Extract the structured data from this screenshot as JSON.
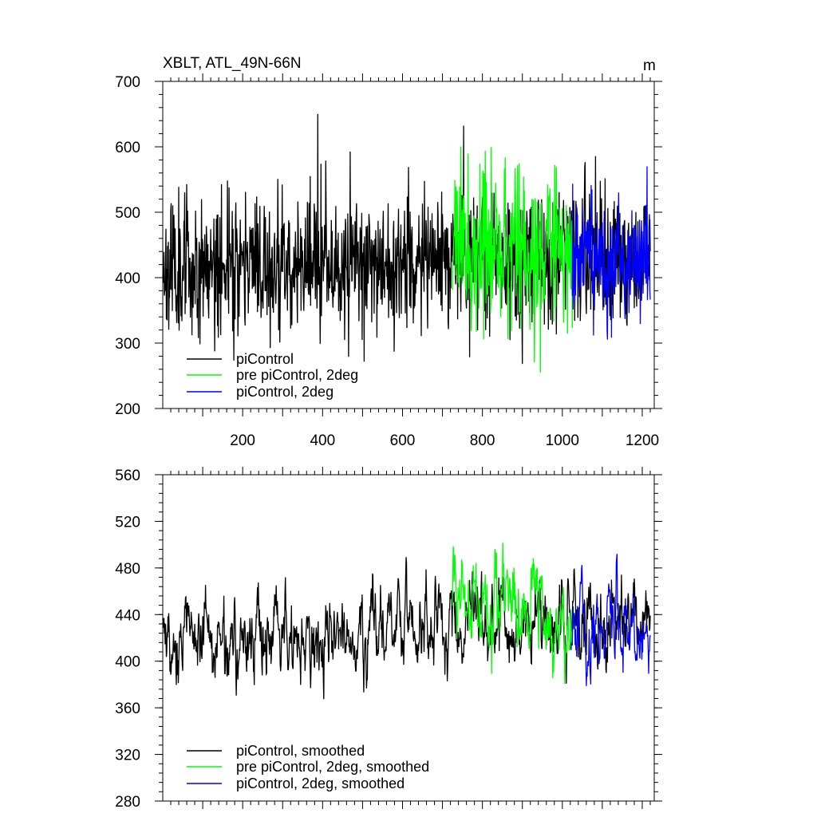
{
  "chart_data": [
    {
      "type": "line",
      "title": "XBLT, ATL_49N-66N",
      "units": "m",
      "xlim": [
        0,
        1230
      ],
      "ylim": [
        200,
        700
      ],
      "xticks": [
        200,
        400,
        600,
        800,
        1000,
        1200
      ],
      "yticks": [
        200,
        300,
        400,
        500,
        600,
        700
      ],
      "xtick_labels": [
        "200",
        "400",
        "600",
        "800",
        "1000",
        "1200"
      ],
      "ytick_labels": [
        "200",
        "300",
        "400",
        "500",
        "600",
        "700"
      ],
      "legend": [
        "piControl",
        "pre piControl, 2deg",
        "piControl, 2deg"
      ],
      "legend_position": "bottom-left",
      "series": [
        {
          "name": "piControl",
          "color": "#000000",
          "x_range": [
            0,
            1220
          ],
          "mean": 418,
          "spread": 52,
          "trend": 12,
          "smooth": 0.0,
          "seed": 11
        },
        {
          "name": "pre piControl, 2deg",
          "color": "#00ff00",
          "x_range": [
            725,
            1025
          ],
          "mean": 450,
          "spread": 62,
          "trend": -20,
          "smooth": 0.0,
          "seed": 23
        },
        {
          "name": "piControl, 2deg",
          "color": "#0000ff",
          "x_range": [
            1025,
            1220
          ],
          "mean": 425,
          "spread": 48,
          "trend": 0,
          "smooth": 0.0,
          "seed": 37
        }
      ]
    },
    {
      "type": "line",
      "title": "",
      "units": "",
      "xlim": [
        0,
        1230
      ],
      "ylim": [
        280,
        560
      ],
      "xticks": [
        200,
        400,
        600,
        800,
        1000,
        1200
      ],
      "yticks": [
        280,
        320,
        360,
        400,
        440,
        480,
        520,
        560
      ],
      "xtick_labels": [],
      "ytick_labels": [
        "280",
        "320",
        "360",
        "400",
        "440",
        "480",
        "520",
        "560"
      ],
      "legend": [
        "piControl, smoothed",
        "pre piControl, 2deg, smoothed",
        "piControl, 2deg, smoothed"
      ],
      "legend_position": "bottom-left",
      "series": [
        {
          "name": "piControl, smoothed",
          "color": "#000000",
          "x_range": [
            0,
            1220
          ],
          "mean": 418,
          "spread": 24,
          "trend": 20,
          "smooth": 0.75,
          "seed": 53
        },
        {
          "name": "pre piControl, 2deg, smoothed",
          "color": "#00ff00",
          "x_range": [
            725,
            1025
          ],
          "mean": 462,
          "spread": 26,
          "trend": -45,
          "smooth": 0.75,
          "seed": 67
        },
        {
          "name": "piControl, 2deg, smoothed",
          "color": "#0000ff",
          "x_range": [
            1025,
            1220
          ],
          "mean": 432,
          "spread": 22,
          "trend": 0,
          "smooth": 0.75,
          "seed": 79
        }
      ]
    }
  ]
}
